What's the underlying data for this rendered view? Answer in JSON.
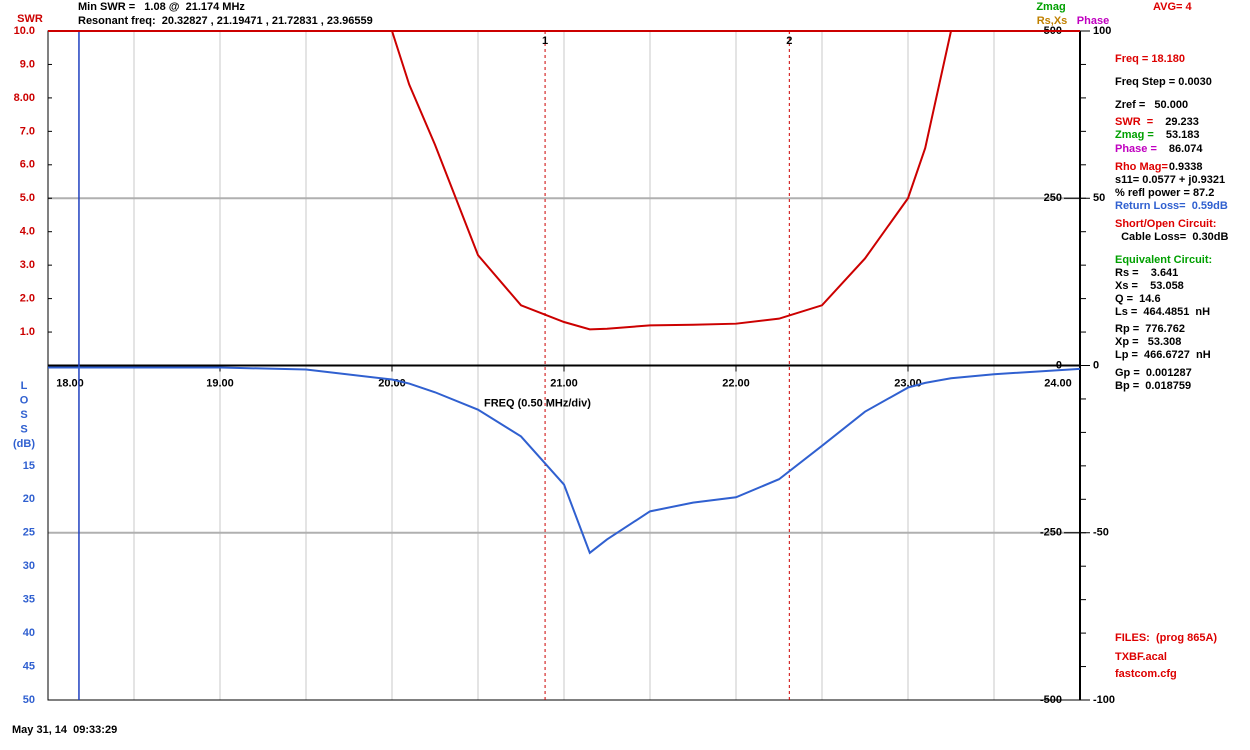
{
  "header": {
    "min_swr": "Min SWR =   1.08 @  21.174 MHz",
    "resonant": "Resonant freq:  20.32827 , 21.19471 , 21.72831 , 23.96559",
    "avg": "AVG= 4"
  },
  "chart_data": {
    "type": "line",
    "xlabel": "FREQ (0.50 MHz/div)",
    "x": [
      18,
      18.5,
      19,
      19.5,
      20,
      20.1,
      20.25,
      20.5,
      20.75,
      21,
      21.15,
      21.25,
      21.5,
      21.75,
      22,
      22.25,
      22.5,
      22.75,
      23,
      23.1,
      23.25,
      23.5,
      24
    ],
    "series": [
      {
        "name": "SWR",
        "color": "#cc0000",
        "values": [
          10,
          10,
          10,
          10,
          10,
          8.4,
          6.6,
          3.3,
          1.8,
          1.3,
          1.08,
          1.1,
          1.2,
          1.22,
          1.25,
          1.4,
          1.8,
          3.2,
          5.0,
          6.5,
          10,
          10,
          10
        ]
      },
      {
        "color": "#3060d0",
        "axis": "loss",
        "values": [
          0.3,
          0.3,
          0.3,
          0.6,
          2.1,
          2.7,
          4,
          6.6,
          10.6,
          17.8,
          28,
          26,
          21.8,
          20.5,
          19.7,
          17,
          12,
          6.9,
          3.3,
          2.6,
          1.9,
          1.3,
          0.5
        ]
      }
    ],
    "xlim": [
      18,
      24
    ],
    "xticks": [
      {
        "value": 18,
        "label": "18.00"
      },
      {
        "value": 19,
        "label": "19.00"
      },
      {
        "value": 20,
        "label": "20.00"
      },
      {
        "value": 21,
        "label": "21.00"
      },
      {
        "value": 22,
        "label": "22.00"
      },
      {
        "value": 23,
        "label": "23.00"
      },
      {
        "value": 24,
        "label": "24.00"
      }
    ],
    "ylim": [
      0,
      10
    ],
    "yticks": [
      {
        "value": 10,
        "label": "10.0"
      },
      {
        "value": 9,
        "label": "9.0"
      },
      {
        "value": 8,
        "label": "8.00"
      },
      {
        "value": 7,
        "label": "7.0"
      },
      {
        "value": 6,
        "label": "6.0"
      },
      {
        "value": 5,
        "label": "5.0"
      },
      {
        "value": 4,
        "label": "4.0"
      },
      {
        "value": 3,
        "label": "3.0"
      },
      {
        "value": 2,
        "label": "2.0"
      },
      {
        "value": 1,
        "label": "1.0"
      }
    ],
    "loss_ylim": [
      0,
      50
    ],
    "loss_yticks": [
      15,
      20,
      25,
      30,
      35,
      40,
      45,
      50
    ],
    "loss_axis_label": [
      "L",
      "O",
      "S",
      "S",
      "(dB)"
    ],
    "right_axes": [
      {
        "ylim": [
          -500,
          500
        ],
        "yticks": [
          500,
          250,
          0,
          -250,
          -500
        ]
      },
      {
        "ylim": [
          -100,
          100
        ],
        "yticks": [
          100,
          50,
          0,
          -50,
          -100
        ]
      }
    ],
    "legend": [
      {
        "name": "Zmag",
        "color": "#00a000"
      },
      {
        "name": "Rs,Xs",
        "color": "#c08000"
      },
      {
        "name": "Phase",
        "color": "#c000c0"
      }
    ],
    "markers": [
      {
        "label": "1",
        "x": 20.89
      },
      {
        "label": "2",
        "x": 22.31
      }
    ],
    "cursor_x": 18.18
  },
  "readout": [
    {
      "label": "Freq = 18.180",
      "color": "#dd0000"
    },
    {
      "label": "Freq Step = 0.0030",
      "color": "#000000"
    },
    {
      "label": "Zref =   50.000",
      "color": "#000000"
    },
    {
      "label": "SWR  =",
      "value": "29.233",
      "color": "#dd0000"
    },
    {
      "label": "Zmag =",
      "value": "53.183",
      "color": "#00a000"
    },
    {
      "label": "Phase =",
      "value": "86.074",
      "color": "#c000c0"
    },
    {
      "label": "Rho Mag=",
      "value": "0.9338",
      "color": "#dd0000"
    },
    {
      "label": "s11= 0.0577 + j0.9321",
      "color": "#000000"
    },
    {
      "label": "% refl power = 87.2",
      "color": "#000000"
    },
    {
      "label": "Return Loss=  0.59dB",
      "color": "#3060d0"
    },
    {
      "label": "Short/Open Circuit:",
      "color": "#dd0000"
    },
    {
      "label": "  Cable Loss=  0.30dB",
      "color": "#000000"
    },
    {
      "label": "Equivalent Circuit:",
      "color": "#00a000"
    },
    {
      "label": "Rs =    3.641",
      "color": "#000000"
    },
    {
      "label": "Xs =    53.058",
      "color": "#000000"
    },
    {
      "label": "Q =  14.6",
      "color": "#000000"
    },
    {
      "label": "Ls =  464.4851  nH",
      "color": "#000000"
    },
    {
      "label": "Rp =  776.762",
      "color": "#000000"
    },
    {
      "label": "Xp =   53.308",
      "color": "#000000"
    },
    {
      "label": "Lp =  466.6727  nH",
      "color": "#000000"
    },
    {
      "label": "Gp =  0.001287",
      "color": "#000000"
    },
    {
      "label": "Bp =  0.018759",
      "color": "#000000"
    }
  ],
  "files": [
    "FILES:  (prog 865A)",
    "TXBF.acal",
    "fastcom.cfg"
  ],
  "footer": "May 31, 14  09:33:29"
}
